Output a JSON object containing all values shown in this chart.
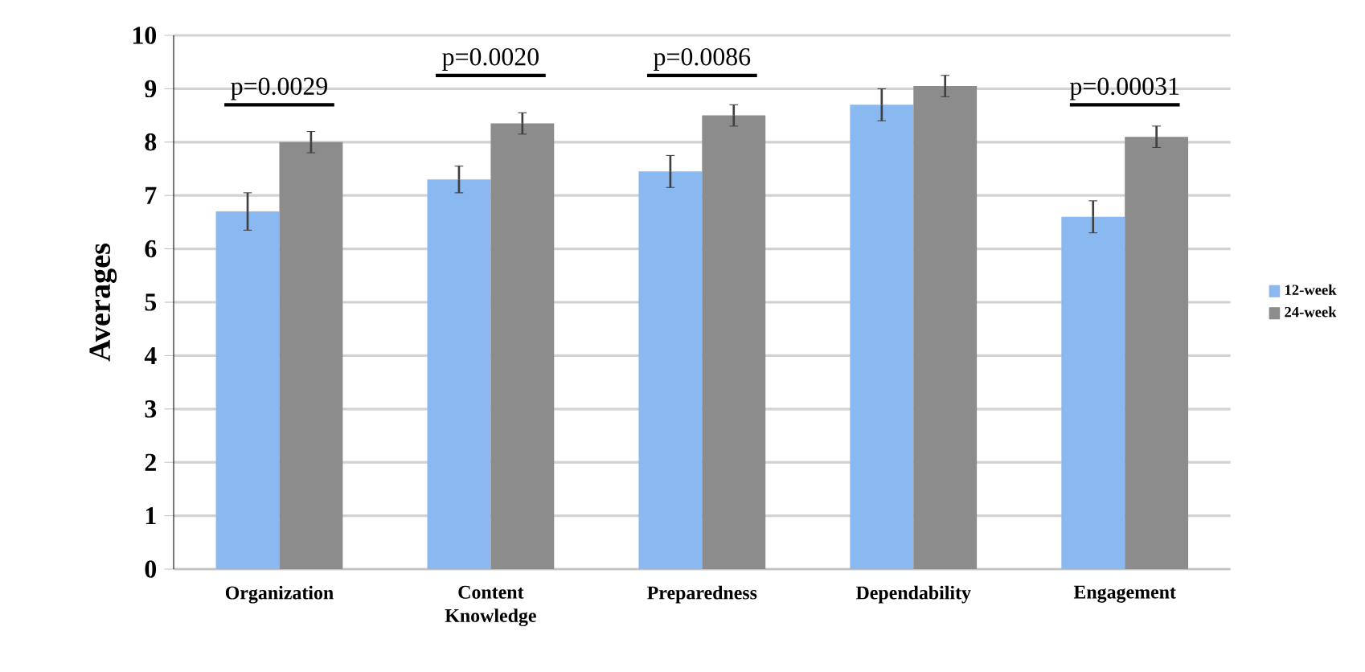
{
  "chart_data": {
    "type": "bar",
    "ylabel": "Averages",
    "categories": [
      "Organization",
      "Content Knowledge",
      "Preparedness",
      "Dependability",
      "Engagement"
    ],
    "series": [
      {
        "name": "12-week",
        "color": "#8ab8f0",
        "values": [
          6.7,
          7.3,
          7.45,
          8.7,
          6.6
        ],
        "errors": [
          0.35,
          0.25,
          0.3,
          0.3,
          0.3
        ]
      },
      {
        "name": "24-week",
        "color": "#8c8c8c",
        "values": [
          8.0,
          8.35,
          8.5,
          9.05,
          8.1
        ],
        "errors": [
          0.2,
          0.2,
          0.2,
          0.2,
          0.2
        ]
      }
    ],
    "ylim": [
      0,
      10
    ],
    "yticks": [
      0,
      1,
      2,
      3,
      4,
      5,
      6,
      7,
      8,
      9,
      10
    ],
    "grid": "y",
    "legend": "right",
    "annotations": [
      "p=0.0029",
      "p=0.0020",
      "p=0.0086",
      "p=0.00031"
    ]
  }
}
